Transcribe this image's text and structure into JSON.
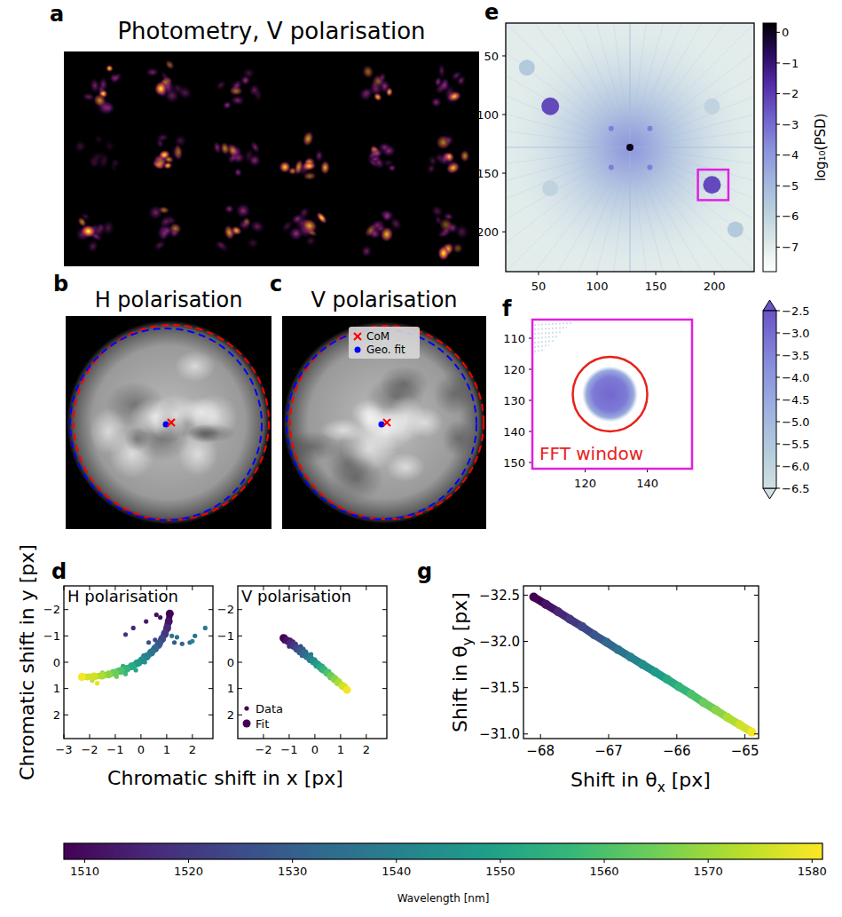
{
  "chart_data": [
    {
      "type": "image",
      "panel": "a",
      "title": "Photometry, V polarisation"
    },
    {
      "type": "image",
      "panel": "b",
      "title": "H polarisation"
    },
    {
      "type": "image",
      "panel": "c",
      "title": "V polarisation",
      "legend": "top",
      "series": [
        {
          "name": "CoM",
          "color": "#ff0000",
          "marker": "x"
        },
        {
          "name": "Geo. fit",
          "color": "#0000ff",
          "marker": "circle"
        }
      ]
    },
    {
      "type": "scatter",
      "panel": "d",
      "title": "H polarisation",
      "xlabel": "Chromatic shift in x [px]",
      "ylabel": "Chromatic shift in y [px]",
      "xlim": [
        -3,
        2.8
      ],
      "ylim": [
        2.9,
        -2.9
      ],
      "xticks": [
        {
          "value": -3,
          "label": "−3"
        },
        {
          "value": -2,
          "label": "−2"
        },
        {
          "value": -1,
          "label": "−1"
        },
        0,
        1,
        2
      ],
      "yticks": [
        {
          "value": -2,
          "label": "−2"
        },
        {
          "value": -1,
          "label": "−1"
        },
        0,
        1,
        2
      ],
      "series": [
        {
          "name": "Data",
          "marker": "point",
          "x": [
            0.6,
            0.75,
            0.2,
            1.0,
            -0.3,
            0.9,
            -0.6,
            0.8,
            0.55,
            0.3,
            0.7,
            1.3,
            1.6,
            1.9,
            1.4,
            2.1,
            1.2,
            2.5,
            0.3,
            0.1,
            2.0,
            -0.05,
            0.15,
            -0.3,
            -0.5,
            -0.2,
            -0.7,
            -0.9,
            -0.6,
            -1.1,
            -1.3,
            -0.95,
            -1.5,
            -1.8,
            -1.9,
            -2.1,
            -1.7,
            -2.2
          ],
          "y": [
            -1.8,
            -1.7,
            -1.55,
            -1.45,
            -1.3,
            -1.15,
            -1.05,
            -0.95,
            -0.85,
            -0.75,
            -0.6,
            -0.75,
            -0.7,
            -0.75,
            -0.95,
            -1.0,
            -1.0,
            -1.3,
            -0.3,
            -0.25,
            -0.8,
            0.05,
            0.0,
            0.1,
            0.2,
            0.3,
            0.15,
            0.3,
            0.45,
            0.35,
            0.5,
            0.55,
            0.4,
            0.5,
            0.7,
            0.6,
            0.8,
            0.55
          ],
          "wavelength": [
            1510,
            1511,
            1513,
            1514,
            1516,
            1518,
            1519,
            1521,
            1523,
            1525,
            1527,
            1529,
            1531,
            1533,
            1534,
            1536,
            1537,
            1538,
            1539,
            1541,
            1542,
            1544,
            1546,
            1548,
            1550,
            1552,
            1554,
            1556,
            1558,
            1560,
            1562,
            1565,
            1568,
            1571,
            1574,
            1576,
            1578,
            1580
          ]
        },
        {
          "name": "Fit",
          "marker": "circle",
          "line_style": "solid",
          "x": [
            1.12,
            1.08,
            1.02,
            0.93,
            0.82,
            0.7,
            0.55,
            0.4,
            0.22,
            0.04,
            -0.15,
            -0.35,
            -0.56,
            -0.78,
            -1.0,
            -1.25,
            -1.52,
            -1.82,
            -2.3
          ],
          "y": [
            -1.85,
            -1.55,
            -1.3,
            -1.08,
            -0.88,
            -0.7,
            -0.52,
            -0.37,
            -0.22,
            -0.08,
            0.04,
            0.15,
            0.25,
            0.33,
            0.4,
            0.46,
            0.51,
            0.54,
            0.56
          ],
          "wavelength": [
            1508,
            1512,
            1516,
            1520,
            1524,
            1528,
            1532,
            1536,
            1540,
            1544,
            1548,
            1552,
            1556,
            1560,
            1564,
            1568,
            1572,
            1576,
            1580
          ]
        }
      ]
    },
    {
      "type": "scatter",
      "title": "V polarisation",
      "legend": "lower left",
      "xlim": [
        -3,
        2.8
      ],
      "ylim": [
        2.9,
        -2.9
      ],
      "xticks": [
        {
          "value": -2,
          "label": "−2"
        },
        {
          "value": -1,
          "label": "−1"
        },
        0,
        1,
        2
      ],
      "yticks": [
        {
          "value": -2,
          "label": "−2"
        },
        {
          "value": -1,
          "label": "−1"
        },
        0,
        1,
        2
      ],
      "series": [
        {
          "name": "Data",
          "marker": "point",
          "x": [
            -1.15,
            -1.2,
            -0.95,
            -0.85,
            -1.0,
            -0.75,
            -0.7,
            -0.55,
            -0.6,
            -0.45,
            -0.5,
            -0.35,
            -0.25,
            -0.15,
            -0.2,
            0.0,
            0.05,
            0.15,
            0.25,
            0.3,
            0.45,
            0.55,
            0.6,
            0.75,
            0.85,
            0.95,
            1.05,
            1.2
          ],
          "y": [
            -0.95,
            -0.8,
            -0.85,
            -0.78,
            -0.6,
            -0.7,
            -0.45,
            -0.6,
            -0.35,
            -0.5,
            -0.25,
            -0.4,
            -0.15,
            -0.3,
            -0.05,
            -0.1,
            0.15,
            0.05,
            0.3,
            0.15,
            0.45,
            0.35,
            0.6,
            0.55,
            0.8,
            0.7,
            0.95,
            0.9
          ],
          "wavelength": [
            1510,
            1512,
            1514,
            1516,
            1518,
            1520,
            1522,
            1524,
            1526,
            1528,
            1530,
            1532,
            1535,
            1538,
            1540,
            1543,
            1546,
            1549,
            1552,
            1555,
            1558,
            1561,
            1564,
            1567,
            1570,
            1573,
            1576,
            1579
          ]
        },
        {
          "name": "Fit",
          "marker": "circle",
          "line_style": "solid",
          "x": [
            -1.22,
            -1.08,
            -0.95,
            -0.82,
            -0.7,
            -0.57,
            -0.44,
            -0.31,
            -0.18,
            -0.05,
            0.08,
            0.21,
            0.35,
            0.48,
            0.62,
            0.77,
            0.92,
            1.08,
            1.25
          ],
          "y": [
            -0.92,
            -0.82,
            -0.72,
            -0.62,
            -0.52,
            -0.42,
            -0.33,
            -0.23,
            -0.13,
            -0.03,
            0.08,
            0.18,
            0.29,
            0.4,
            0.52,
            0.64,
            0.77,
            0.9,
            1.05
          ],
          "wavelength": [
            1508,
            1512,
            1516,
            1520,
            1524,
            1528,
            1532,
            1536,
            1540,
            1544,
            1548,
            1552,
            1556,
            1560,
            1564,
            1568,
            1572,
            1576,
            1580
          ]
        }
      ]
    },
    {
      "type": "heatmap",
      "panel": "e",
      "xlim": [
        22,
        234
      ],
      "ylim": [
        234,
        22
      ],
      "xticks": [
        50,
        100,
        150,
        200
      ],
      "yticks": [
        50,
        100,
        150,
        200
      ],
      "peaks": [
        {
          "x": 128,
          "y": 128,
          "value": 0
        },
        {
          "x": 60,
          "y": 93,
          "value": -2.3
        },
        {
          "x": 198,
          "y": 160,
          "value": -2.3
        },
        {
          "x": 112,
          "y": 112,
          "value": -3.4
        },
        {
          "x": 145,
          "y": 112,
          "value": -3.4
        },
        {
          "x": 112,
          "y": 145,
          "value": -3.4
        },
        {
          "x": 145,
          "y": 145,
          "value": -3.4
        },
        {
          "x": 40,
          "y": 60,
          "value": -5.6
        },
        {
          "x": 218,
          "y": 198,
          "value": -5.6
        },
        {
          "x": 60,
          "y": 163,
          "value": -6.0
        },
        {
          "x": 198,
          "y": 93,
          "value": -6.0
        }
      ],
      "zoom_box": {
        "xlim": [
          186,
          212
        ],
        "ylim": [
          147,
          173
        ]
      },
      "colorbar": {
        "label": "log₁₀(PSD)",
        "range": [
          -7.8,
          0.3
        ],
        "ticks": [
          0,
          {
            "value": -1,
            "label": "−1"
          },
          {
            "value": -2,
            "label": "−2"
          },
          {
            "value": -3,
            "label": "−3"
          },
          {
            "value": -4,
            "label": "−4"
          },
          {
            "value": -5,
            "label": "−5"
          },
          {
            "value": -6,
            "label": "−6"
          },
          {
            "value": -7,
            "label": "−7"
          }
        ]
      }
    },
    {
      "type": "heatmap",
      "panel": "f",
      "xlim": [
        103,
        154.4
      ],
      "ylim": [
        152,
        104
      ],
      "xticks": [
        120,
        140
      ],
      "yticks": [
        110,
        120,
        130,
        140,
        150
      ],
      "peaks": [
        {
          "x": 128,
          "y": 128,
          "value": -2.9
        }
      ],
      "annotations": [
        {
          "text": "FFT window",
          "x": 128,
          "y": 128,
          "radius": 12
        }
      ],
      "colorbar": {
        "range": [
          -6.5,
          -2.5
        ],
        "ticks": [
          {
            "value": -2.5,
            "label": "−2.5"
          },
          {
            "value": -3,
            "label": "−3.0"
          },
          {
            "value": -3.5,
            "label": "−3.5"
          },
          {
            "value": -4,
            "label": "−4.0"
          },
          {
            "value": -4.5,
            "label": "−4.5"
          },
          {
            "value": -5,
            "label": "−5.0"
          },
          {
            "value": -5.5,
            "label": "−5.5"
          },
          {
            "value": -6,
            "label": "−6.0"
          },
          {
            "value": -6.5,
            "label": "−6.5"
          }
        ]
      }
    },
    {
      "type": "scatter",
      "panel": "g",
      "xlabel": "Shift in θx [px]",
      "ylabel": "Shift in θy [px]",
      "xlim": [
        -68.25,
        -64.8
      ],
      "ylim": [
        -30.95,
        -32.6
      ],
      "xticks": [
        {
          "value": -68,
          "label": "−68"
        },
        {
          "value": -67,
          "label": "−67"
        },
        {
          "value": -66,
          "label": "−66"
        },
        {
          "value": -65,
          "label": "−65"
        }
      ],
      "yticks": [
        {
          "value": -32.5,
          "label": "−32.5"
        },
        {
          "value": -32.0,
          "label": "−32.0"
        },
        {
          "value": -31.5,
          "label": "−31.5"
        },
        {
          "value": -31.0,
          "label": "−31.0"
        }
      ],
      "series": [
        {
          "marker": "circle",
          "line_style": "solid",
          "x": [
            -68.1,
            -67.92,
            -67.74,
            -67.57,
            -67.39,
            -67.21,
            -67.03,
            -66.86,
            -66.68,
            -66.5,
            -66.32,
            -66.14,
            -65.97,
            -65.79,
            -65.61,
            -65.43,
            -65.26,
            -65.08,
            -64.9
          ],
          "y": [
            -32.48,
            -32.4,
            -32.32,
            -32.24,
            -32.16,
            -32.07,
            -31.99,
            -31.91,
            -31.83,
            -31.75,
            -31.67,
            -31.59,
            -31.51,
            -31.43,
            -31.34,
            -31.26,
            -31.18,
            -31.1,
            -31.02
          ],
          "wavelength": [
            1508,
            1512,
            1516,
            1520,
            1524,
            1528,
            1532,
            1536,
            1540,
            1544,
            1548,
            1552,
            1556,
            1560,
            1564,
            1568,
            1572,
            1576,
            1580
          ]
        }
      ]
    },
    {
      "type": "colorbar",
      "label": "Wavelength [nm]",
      "range": [
        1508,
        1581
      ],
      "ticks": [
        1510,
        1520,
        1530,
        1540,
        1550,
        1560,
        1570,
        1580
      ]
    }
  ]
}
